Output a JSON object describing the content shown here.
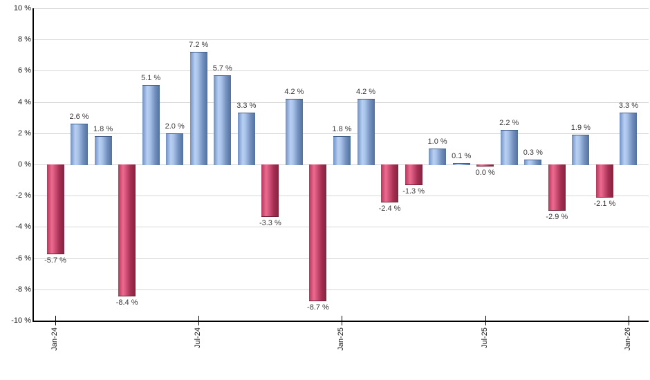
{
  "chart_data": {
    "type": "bar",
    "title": "",
    "xlabel": "",
    "ylabel": "",
    "ylim": [
      -10,
      10
    ],
    "ytick_step": 2,
    "grid": true,
    "gridline_color": "#d6d6d6",
    "axis_color": "#000000",
    "positive_color": "#7090c4",
    "negative_color": "#c44367",
    "value_suffix": " %",
    "points": [
      {
        "value": -5.7,
        "label": "-5.7 %",
        "sign": "neg"
      },
      {
        "value": 2.6,
        "label": "2.6 %",
        "sign": "pos"
      },
      {
        "value": 1.8,
        "label": "1.8 %",
        "sign": "pos"
      },
      {
        "value": -8.4,
        "label": "-8.4 %",
        "sign": "neg"
      },
      {
        "value": 5.1,
        "label": "5.1 %",
        "sign": "pos"
      },
      {
        "value": 2.0,
        "label": "2.0 %",
        "sign": "pos"
      },
      {
        "value": 7.2,
        "label": "7.2 %",
        "sign": "pos"
      },
      {
        "value": 5.7,
        "label": "5.7 %",
        "sign": "pos"
      },
      {
        "value": 3.3,
        "label": "3.3 %",
        "sign": "pos"
      },
      {
        "value": -3.3,
        "label": "-3.3 %",
        "sign": "neg"
      },
      {
        "value": 4.2,
        "label": "4.2 %",
        "sign": "pos"
      },
      {
        "value": -8.7,
        "label": "-8.7 %",
        "sign": "neg"
      },
      {
        "value": 1.8,
        "label": "1.8 %",
        "sign": "pos"
      },
      {
        "value": 4.2,
        "label": "4.2 %",
        "sign": "pos"
      },
      {
        "value": -2.4,
        "label": "-2.4 %",
        "sign": "neg"
      },
      {
        "value": -1.3,
        "label": "-1.3 %",
        "sign": "neg"
      },
      {
        "value": 1.0,
        "label": "1.0 %",
        "sign": "pos"
      },
      {
        "value": 0.1,
        "label": "0.1 %",
        "sign": "pos"
      },
      {
        "value": 0.0,
        "label": "0.0 %",
        "sign": "neg"
      },
      {
        "value": 2.2,
        "label": "2.2 %",
        "sign": "pos"
      },
      {
        "value": 0.3,
        "label": "0.3 %",
        "sign": "pos"
      },
      {
        "value": -2.9,
        "label": "-2.9 %",
        "sign": "neg"
      },
      {
        "value": 1.9,
        "label": "1.9 %",
        "sign": "pos"
      },
      {
        "value": -2.1,
        "label": "-2.1 %",
        "sign": "neg"
      },
      {
        "value": 3.3,
        "label": "3.3 %",
        "sign": "pos"
      }
    ],
    "yticks": [
      {
        "value": 10,
        "label": "10 %"
      },
      {
        "value": 8,
        "label": "8 %"
      },
      {
        "value": 6,
        "label": "6 %"
      },
      {
        "value": 4,
        "label": "4 %"
      },
      {
        "value": 2,
        "label": "2 %"
      },
      {
        "value": 0,
        "label": "0 %"
      },
      {
        "value": -2,
        "label": "-2 %"
      },
      {
        "value": -4,
        "label": "-4 %"
      },
      {
        "value": -6,
        "label": "-6 %"
      },
      {
        "value": -8,
        "label": "-8 %"
      },
      {
        "value": -10,
        "label": "-10 %"
      }
    ],
    "xticks": [
      {
        "index": 0,
        "label": "Jan-24"
      },
      {
        "index": 6,
        "label": "Jul-24"
      },
      {
        "index": 12,
        "label": "Jan-25"
      },
      {
        "index": 18,
        "label": "Jul-25"
      },
      {
        "index": 24,
        "label": "Jan-26"
      }
    ]
  }
}
